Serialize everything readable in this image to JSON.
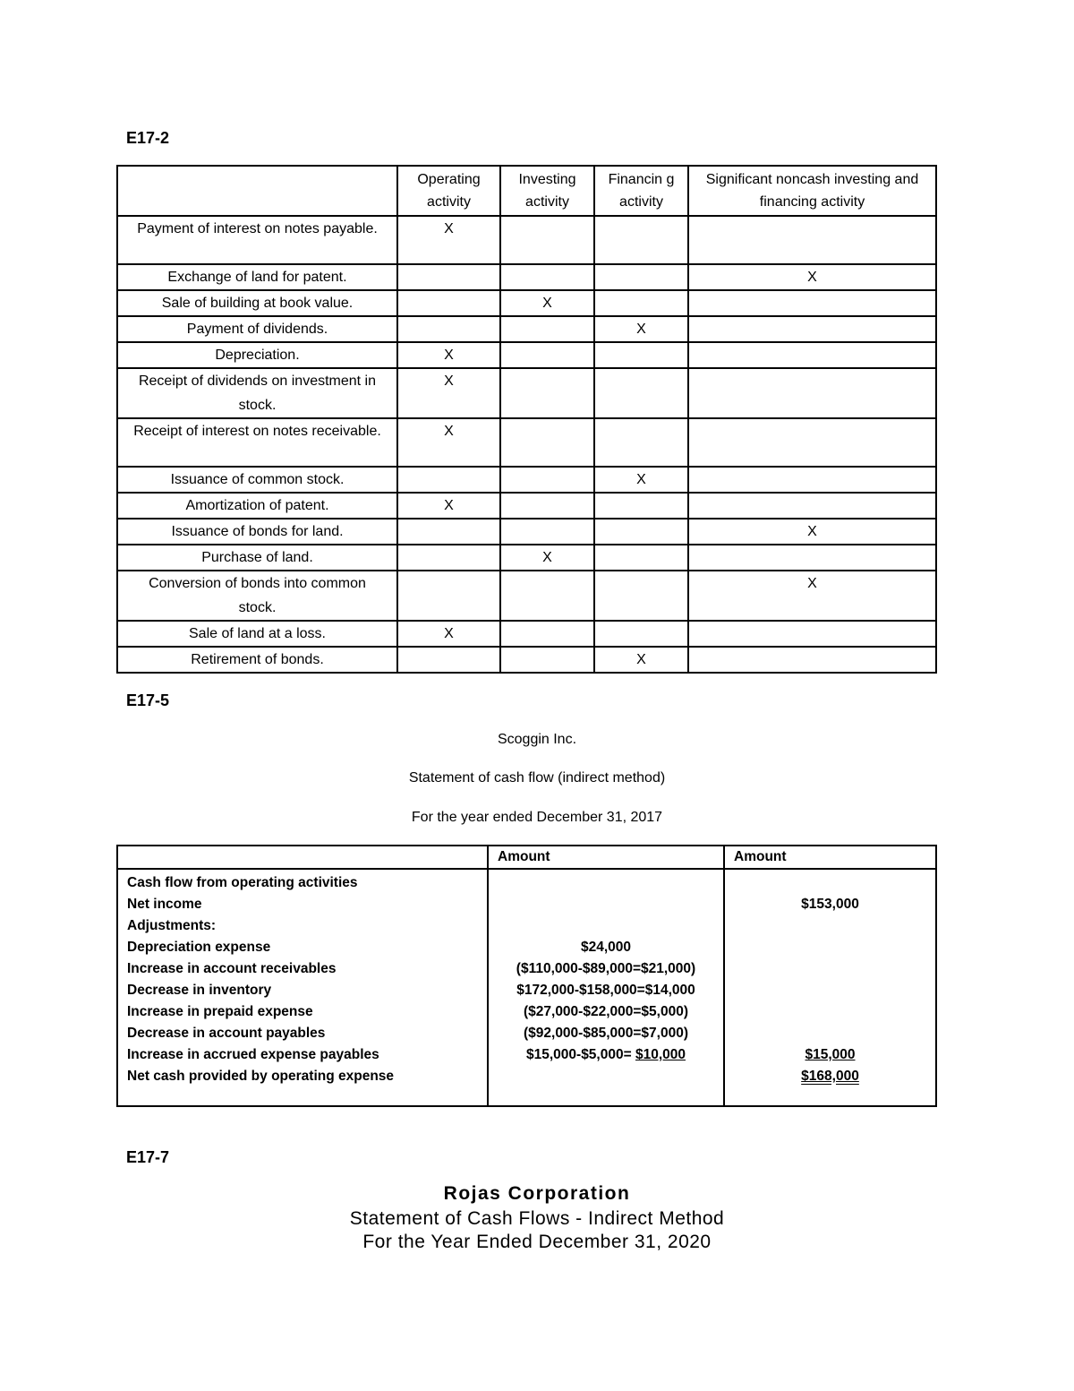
{
  "e17_2": {
    "heading": "E17-2",
    "headers": [
      "",
      "Operating activity",
      "Investing activity",
      "Financin g activity",
      "Significant noncash investing and financing activity"
    ],
    "mark": "X",
    "rows": [
      {
        "label": "Payment of interest on notes payable.",
        "col": 0,
        "tall": true
      },
      {
        "label": "Exchange of land for patent.",
        "col": 3
      },
      {
        "label": "Sale of building at book value.",
        "col": 1
      },
      {
        "label": "Payment of dividends.",
        "col": 2
      },
      {
        "label": "Depreciation.",
        "col": 0
      },
      {
        "label": "Receipt of dividends on investment in stock.",
        "col": 0,
        "tall": true
      },
      {
        "label": "Receipt of interest on notes receivable.",
        "col": 0,
        "tall": true
      },
      {
        "label": "Issuance of common stock.",
        "col": 2
      },
      {
        "label": "Amortization of patent.",
        "col": 0
      },
      {
        "label": "Issuance of bonds for land.",
        "col": 3
      },
      {
        "label": "Purchase of land.",
        "col": 1
      },
      {
        "label": "Conversion of bonds into common stock.",
        "col": 3,
        "tall": true
      },
      {
        "label": "Sale of land at a loss.",
        "col": 0
      },
      {
        "label": "Retirement of bonds.",
        "col": 2
      }
    ]
  },
  "e17_5": {
    "heading": "E17-5",
    "company": "Scoggin Inc.",
    "statement": "Statement of cash flow (indirect method)",
    "period": "For the year ended December 31, 2017",
    "headers": [
      "",
      "Amount",
      "Amount"
    ],
    "rows": [
      {
        "label": "Cash flow from operating activities",
        "amount1": "",
        "amount2": ""
      },
      {
        "label": "Net income",
        "amount1": "",
        "amount2": "$153,000"
      },
      {
        "label": "Adjustments:",
        "amount1": "",
        "amount2": ""
      },
      {
        "label": "Depreciation expense",
        "amount1": "$24,000",
        "amount2": ""
      },
      {
        "label": "Increase in account receivables",
        "amount1": "($110,000-$89,000=$21,000)",
        "amount2": ""
      },
      {
        "label": "Decrease in inventory",
        "amount1": "$172,000-$158,000=$14,000",
        "amount2": ""
      },
      {
        "label": "Increase in prepaid expense",
        "amount1": "($27,000-$22,000=$5,000)",
        "amount2": ""
      },
      {
        "label": "Decrease in account payables",
        "amount1": "($92,000-$85,000=$7,000)",
        "amount2": ""
      },
      {
        "label": "Increase in accrued expense payables",
        "amount1": "$15,000-$5,000= ",
        "amount1_underlined": "$10,000",
        "amount2": "$15,000"
      },
      {
        "label": "Net cash provided by operating expense",
        "amount1": "",
        "amount2": "$168,000"
      }
    ]
  },
  "e17_7": {
    "heading": "E17-7",
    "company": "Rojas Corporation",
    "statement": "Statement of Cash Flows - Indirect Method",
    "period": "For the Year Ended December 31, 2020"
  }
}
